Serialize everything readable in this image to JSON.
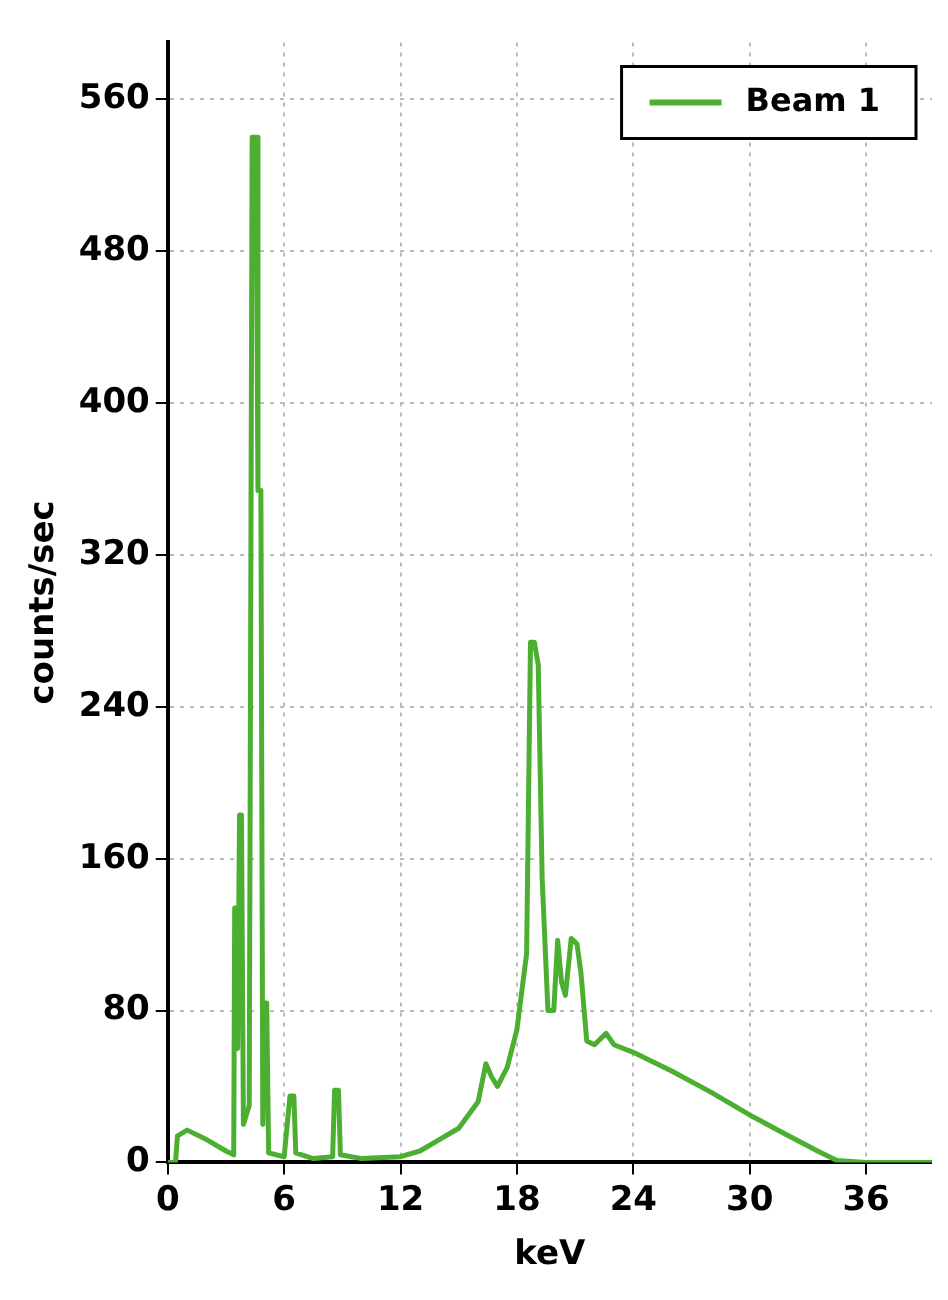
{
  "chart_data": {
    "type": "line",
    "xlabel": "keV",
    "ylabel": "counts/sec",
    "xlim": [
      0,
      39.4
    ],
    "xticks": [
      0,
      6,
      12,
      18,
      24,
      30,
      36
    ],
    "ylim": [
      0,
      590
    ],
    "yticks": [
      0,
      80,
      160,
      240,
      320,
      400,
      480,
      560
    ],
    "grid": true,
    "legend": "top right",
    "marker": "none",
    "line_style": "solid",
    "x": [
      0,
      0.4,
      0.5,
      1,
      2,
      3,
      3.4,
      3.45,
      3.55,
      3.6,
      3.7,
      3.8,
      3.9,
      4.2,
      4.35,
      4.55,
      4.65,
      4.8,
      4.9,
      5.0,
      5.1,
      5.2,
      6.0,
      6.3,
      6.5,
      6.6,
      7.5,
      8.5,
      8.6,
      8.8,
      8.9,
      10,
      12,
      13,
      14,
      15,
      16,
      16.4,
      16.7,
      17,
      17.5,
      18,
      18.5,
      18.7,
      18.9,
      19.1,
      19.3,
      19.6,
      19.9,
      20.1,
      20.3,
      20.5,
      20.8,
      21.1,
      21.3,
      21.6,
      22,
      22.6,
      23,
      24,
      26,
      28,
      30,
      32,
      33.5,
      34.5,
      36,
      39.4
    ],
    "series": [
      {
        "name": "Beam 1",
        "color": "#4caf32",
        "values": [
          0,
          0,
          14,
          17,
          12,
          6,
          4,
          134,
          134,
          60,
          183,
          183,
          20,
          30,
          540,
          540,
          354,
          354,
          20,
          84,
          84,
          5,
          3,
          35,
          35,
          5,
          2,
          3,
          38,
          38,
          4,
          2,
          3,
          6,
          12,
          18,
          32,
          52,
          45,
          40,
          50,
          70,
          110,
          274,
          274,
          262,
          150,
          80,
          80,
          117,
          95,
          88,
          118,
          115,
          100,
          64,
          62,
          68,
          62,
          58,
          48,
          37,
          25,
          14,
          6,
          1,
          0,
          0
        ]
      }
    ]
  }
}
